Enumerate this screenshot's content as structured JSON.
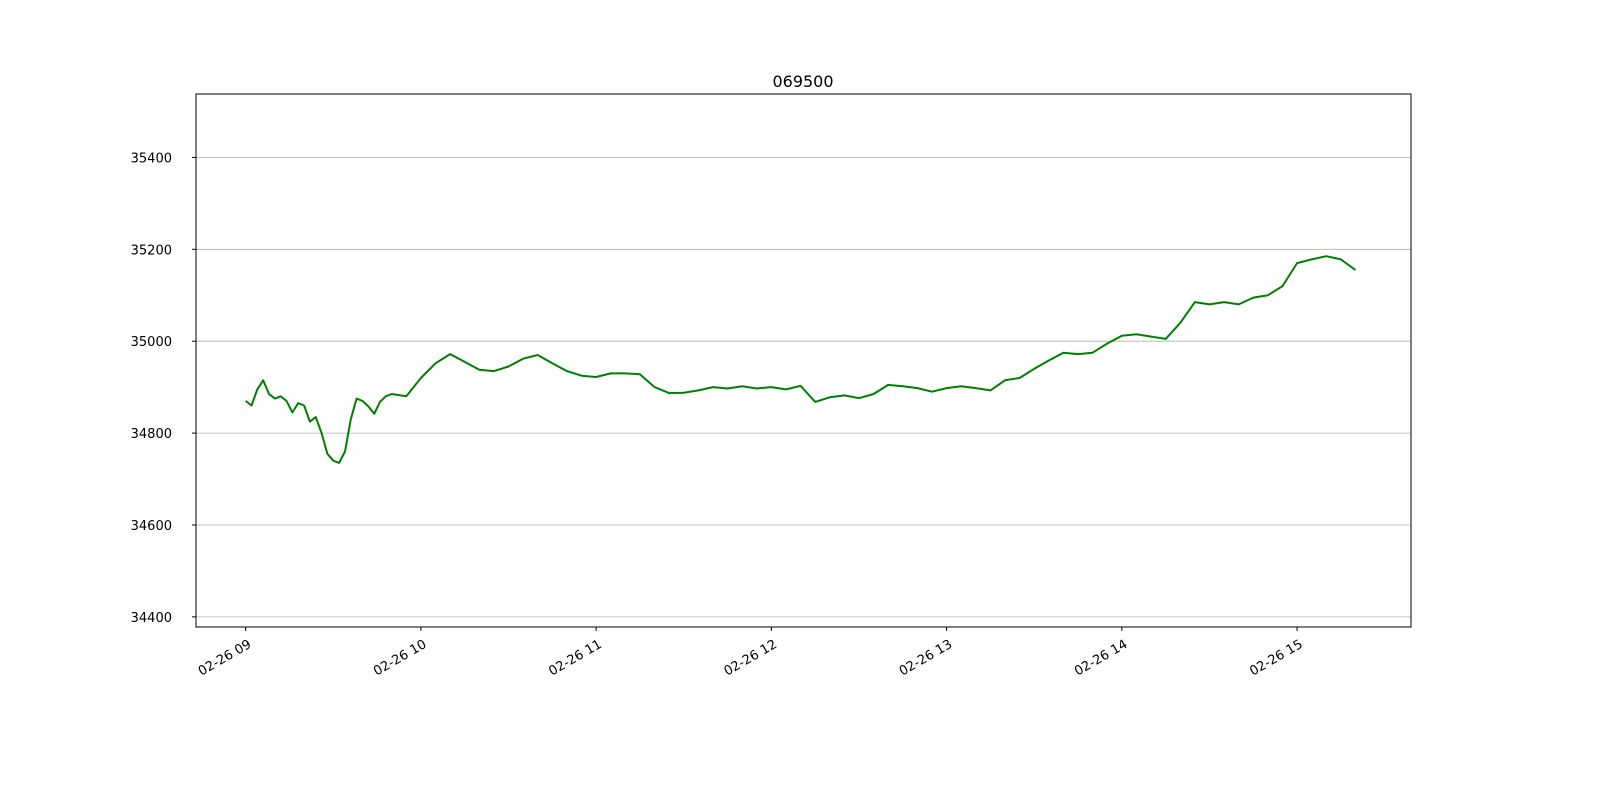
{
  "chart_data": {
    "type": "line",
    "title": "069500",
    "xlabel": "",
    "ylabel": "",
    "x_tick_labels": [
      "02-26 09",
      "02-26 10",
      "02-26 11",
      "02-26 12",
      "02-26 13",
      "02-26 14",
      "02-26 15"
    ],
    "y_tick_labels": [
      "34400",
      "34600",
      "34800",
      "35000",
      "35200",
      "35400"
    ],
    "y_ticks": [
      34400,
      34600,
      34800,
      35000,
      35200,
      35400
    ],
    "ylim": [
      34378,
      35538
    ],
    "xlim": [
      "02-26 08:43",
      "02-26 15:39"
    ],
    "grid": "horizontal",
    "line_color": "#008000",
    "series": [
      {
        "x": [
          "09:00",
          "09:02",
          "09:04",
          "09:06",
          "09:08",
          "09:10",
          "09:12",
          "09:14",
          "09:16",
          "09:18",
          "09:20",
          "09:22",
          "09:24",
          "09:26",
          "09:28",
          "09:30",
          "09:32",
          "09:34",
          "09:36",
          "09:38",
          "09:40",
          "09:42",
          "09:44",
          "09:46",
          "09:48",
          "09:50",
          "09:55",
          "10:00",
          "10:05",
          "10:10",
          "10:15",
          "10:20",
          "10:25",
          "10:30",
          "10:35",
          "10:40",
          "10:45",
          "10:50",
          "10:55",
          "11:00",
          "11:05",
          "11:10",
          "11:15",
          "11:20",
          "11:25",
          "11:30",
          "11:35",
          "11:40",
          "11:45",
          "11:50",
          "11:55",
          "12:00",
          "12:05",
          "12:10",
          "12:15",
          "12:20",
          "12:25",
          "12:30",
          "12:35",
          "12:40",
          "12:45",
          "12:50",
          "12:55",
          "13:00",
          "13:05",
          "13:10",
          "13:15",
          "13:20",
          "13:25",
          "13:30",
          "13:35",
          "13:40",
          "13:45",
          "13:50",
          "13:55",
          "14:00",
          "14:05",
          "14:10",
          "14:15",
          "14:20",
          "14:25",
          "14:30",
          "14:35",
          "14:40",
          "14:45",
          "14:50",
          "14:55",
          "15:00",
          "15:05",
          "15:10",
          "15:15",
          "15:20"
        ],
        "values": [
          34870,
          34860,
          34895,
          34915,
          34885,
          34875,
          34880,
          34870,
          34845,
          34865,
          34860,
          34825,
          34835,
          34800,
          34755,
          34740,
          34735,
          34760,
          34830,
          34875,
          34870,
          34858,
          34842,
          34868,
          34880,
          34885,
          34880,
          34920,
          34952,
          34972,
          34955,
          34938,
          34935,
          34945,
          34962,
          34970,
          34952,
          34935,
          34925,
          34922,
          34930,
          34930,
          34928,
          34900,
          34887,
          34888,
          34893,
          34900,
          34897,
          34902,
          34897,
          34900,
          34895,
          34903,
          34868,
          34878,
          34882,
          34876,
          34885,
          34905,
          34902,
          34898,
          34890,
          34898,
          34902,
          34898,
          34893,
          34915,
          34920,
          34940,
          34958,
          34975,
          34972,
          34975,
          34995,
          35012,
          35015,
          35010,
          35005,
          35040,
          35085,
          35080,
          35085,
          35080,
          35095,
          35100,
          35120,
          35170,
          35178,
          35185,
          35178,
          35155
        ]
      }
    ]
  }
}
